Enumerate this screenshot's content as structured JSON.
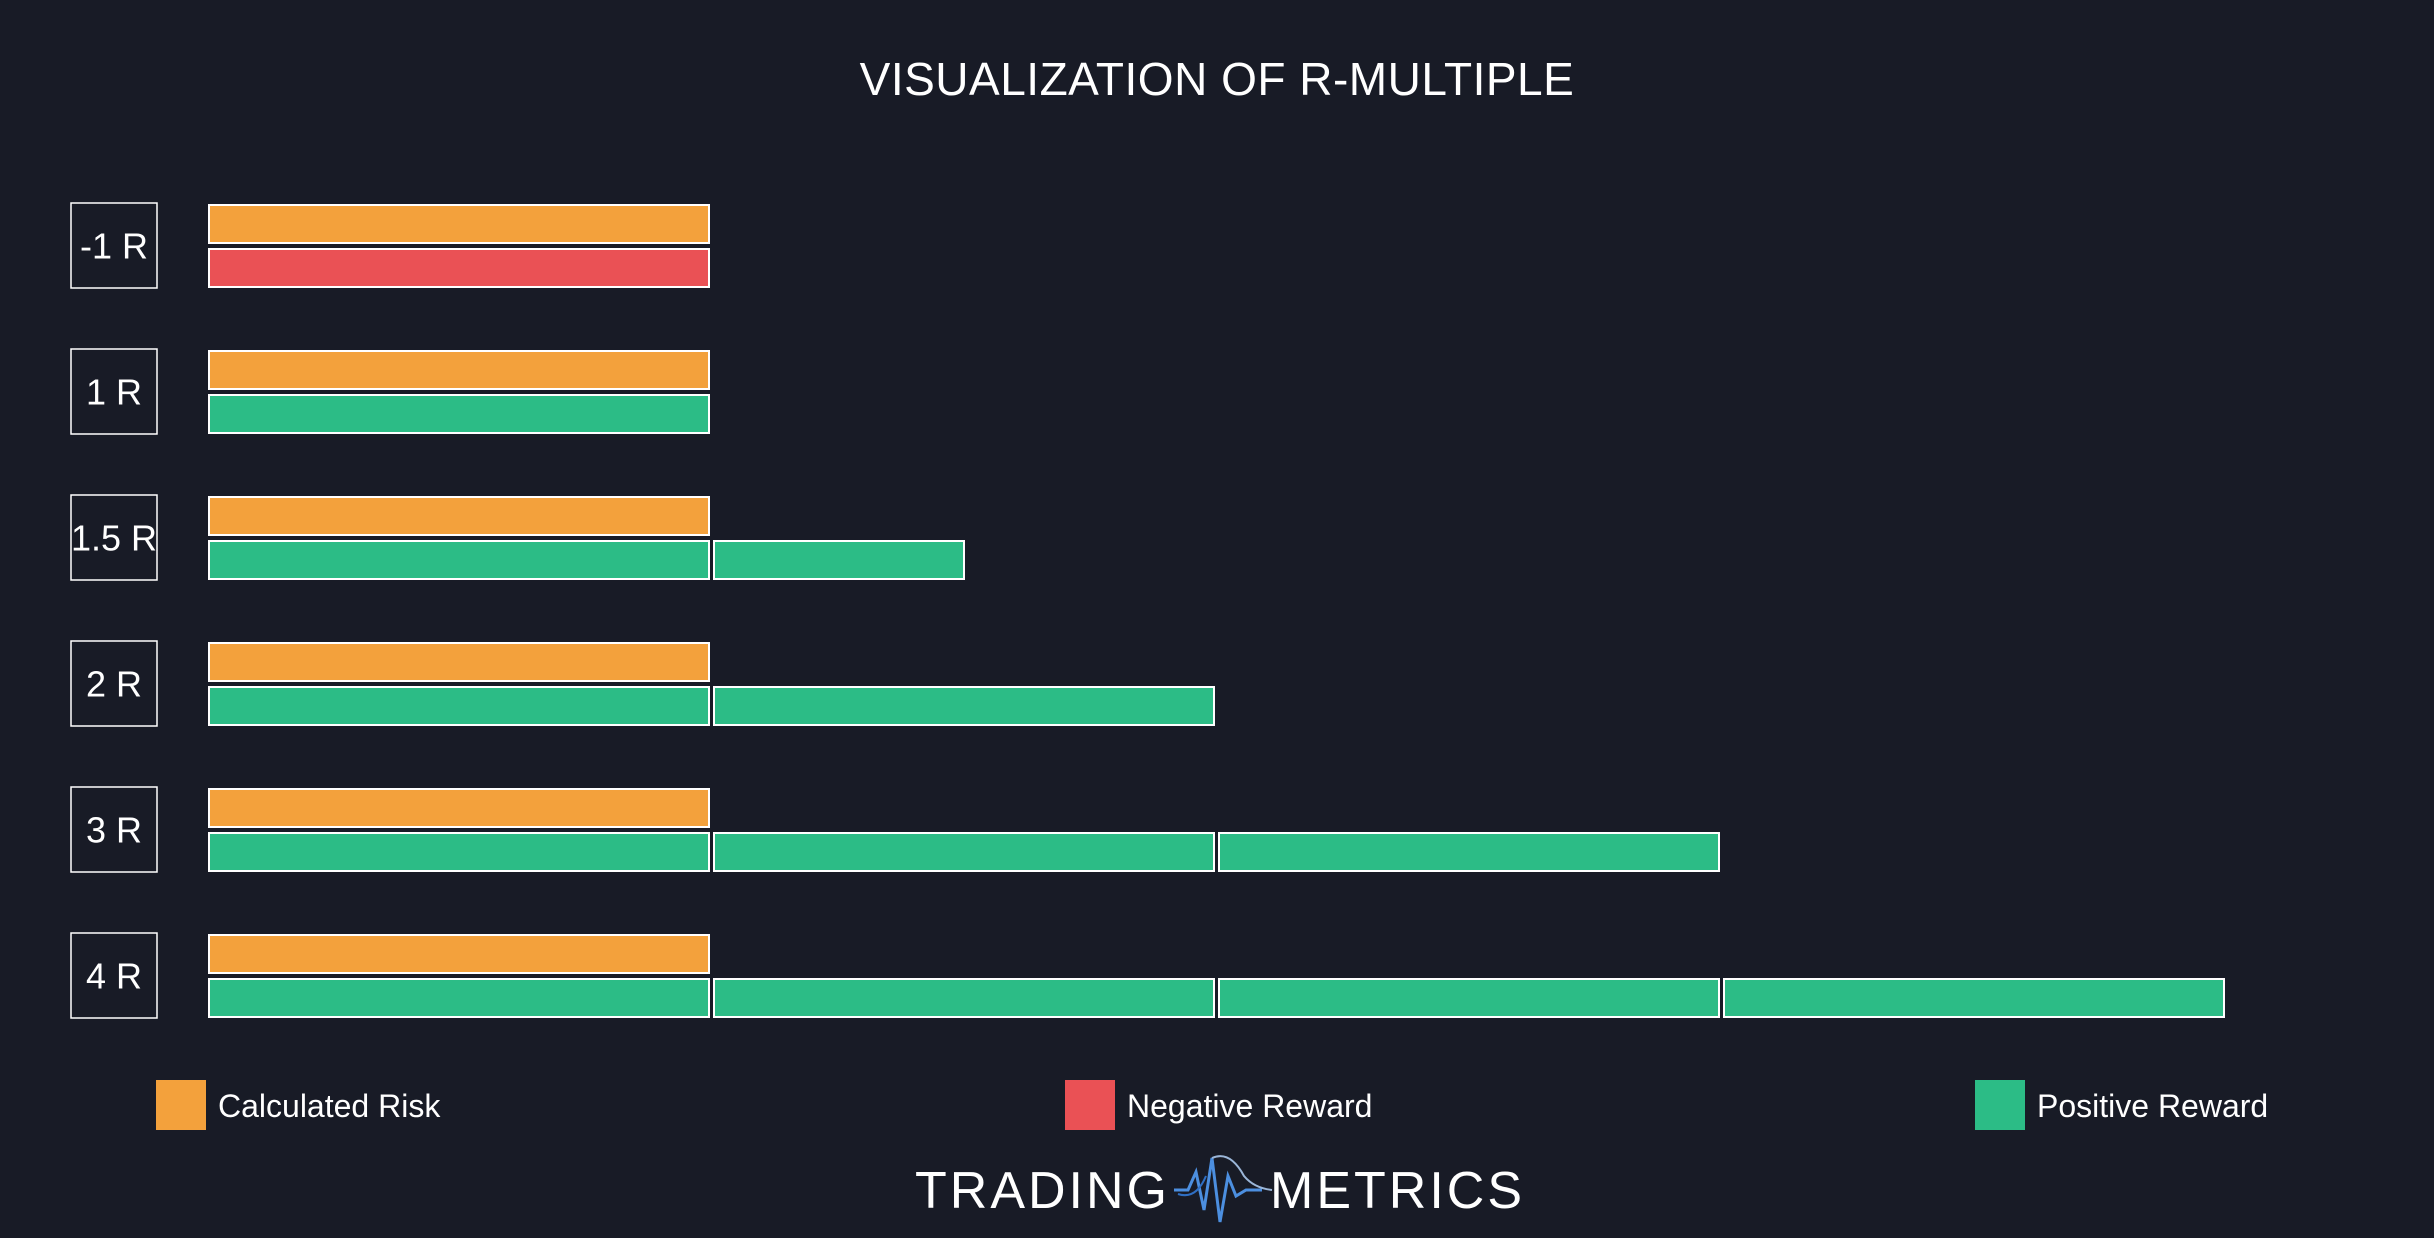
{
  "chart_data": {
    "type": "bar",
    "title": "VISUALIZATION OF R-MULTIPLE",
    "unit_risk": 1,
    "rows": [
      {
        "label": "-1 R",
        "risk": 1,
        "reward": -1
      },
      {
        "label": "1 R",
        "risk": 1,
        "reward": 1
      },
      {
        "label": "1.5 R",
        "risk": 1,
        "reward": 1.5
      },
      {
        "label": "2 R",
        "risk": 1,
        "reward": 2
      },
      {
        "label": "3 R",
        "risk": 1,
        "reward": 3
      },
      {
        "label": "4 R",
        "risk": 1,
        "reward": 4
      }
    ],
    "legend": [
      {
        "key": "risk",
        "label": "Calculated Risk",
        "color": "#f3a13c"
      },
      {
        "key": "negative",
        "label": "Negative Reward",
        "color": "#ea5155"
      },
      {
        "key": "positive",
        "label": "Positive Reward",
        "color": "#2cbc86"
      }
    ],
    "colors": {
      "background": "#181b26",
      "risk": "#f3a13c",
      "negative": "#ea5155",
      "positive": "#2cbc86",
      "outline": "#ffffff",
      "logo_wave": "#4c8fe0"
    }
  },
  "brand": {
    "left": "TRADING",
    "right": "METRICS",
    "icon": "wave-logo-icon"
  }
}
